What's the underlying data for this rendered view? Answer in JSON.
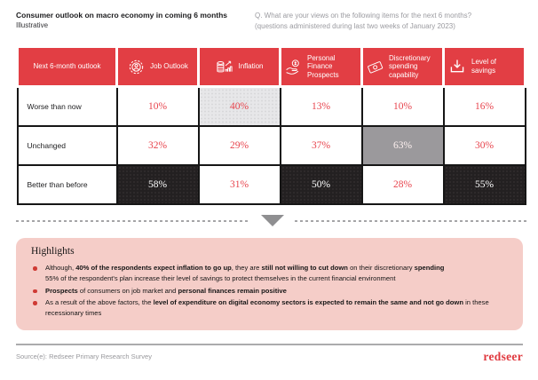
{
  "page": {
    "title": "Consumer outlook on macro economy in coming 6 months",
    "subtitle": "Illustrative",
    "question_line1": "Q. What are your views on the following items for the next 6 months?",
    "question_line2": "(questions administered during last two weeks of January 2023)"
  },
  "table": {
    "header": [
      {
        "label": "Next 6-month outlook",
        "icon": null
      },
      {
        "label": "Job Outlook",
        "icon": "gear-person"
      },
      {
        "label": "Inflation",
        "icon": "coins-growth"
      },
      {
        "label": "Personal Finance Prospects",
        "icon": "hand-coin"
      },
      {
        "label": "Discretionary spending capability",
        "icon": "banknote"
      },
      {
        "label": "Level of savings",
        "icon": "download-tray"
      }
    ],
    "rows": [
      {
        "label": "Worse than now",
        "cells": [
          {
            "value": "10%",
            "style": "default"
          },
          {
            "value": "40%",
            "style": "light"
          },
          {
            "value": "13%",
            "style": "default"
          },
          {
            "value": "10%",
            "style": "default"
          },
          {
            "value": "16%",
            "style": "default"
          }
        ]
      },
      {
        "label": "Unchanged",
        "cells": [
          {
            "value": "32%",
            "style": "default"
          },
          {
            "value": "29%",
            "style": "default"
          },
          {
            "value": "37%",
            "style": "default"
          },
          {
            "value": "63%",
            "style": "mid"
          },
          {
            "value": "30%",
            "style": "default"
          }
        ]
      },
      {
        "label": "Better than before",
        "cells": [
          {
            "value": "58%",
            "style": "dark"
          },
          {
            "value": "31%",
            "style": "default"
          },
          {
            "value": "50%",
            "style": "dark"
          },
          {
            "value": "28%",
            "style": "default"
          },
          {
            "value": "55%",
            "style": "dark"
          }
        ]
      }
    ]
  },
  "highlights": {
    "title": "Highlights",
    "bullets": [
      {
        "segments": [
          {
            "t": "Although, "
          },
          {
            "t": "40% of the respondents expect inflation to go up",
            "b": true
          },
          {
            "t": ", they are "
          },
          {
            "t": "still not willing to cut down",
            "b": true
          },
          {
            "t": " on their discretionary "
          },
          {
            "t": "spending",
            "b": true
          },
          {
            "t": "\n55% of the respondent's plan increase their level of savings to protect themselves in the current financial environment"
          }
        ]
      },
      {
        "segments": [
          {
            "t": "Prospects",
            "b": true
          },
          {
            "t": " of consumers on job market and "
          },
          {
            "t": "personal finances remain positive",
            "b": true
          }
        ]
      },
      {
        "segments": [
          {
            "t": "As a result of the above factors, the "
          },
          {
            "t": "level of expenditure on digital economy sectors is expected to remain the same and not go down",
            "b": true
          },
          {
            "t": " in these recessionary times"
          }
        ]
      }
    ]
  },
  "footer": {
    "source": "Source(e): Redseer Primary Research Survey",
    "logo": "redseer"
  },
  "colors": {
    "header_red": "#E23E44",
    "value_red": "#E8454E",
    "highlight_pink": "#F5CDC8",
    "cell_dark": "#232021",
    "cell_mid": "#9B999C",
    "cell_light": "#E7E7E9",
    "logo_red": "#E0393F"
  },
  "chart_data": {
    "type": "table",
    "title": "Consumer outlook on macro economy in coming 6 months",
    "columns": [
      "Job Outlook",
      "Inflation",
      "Personal Finance Prospects",
      "Discretionary spending capability",
      "Level of savings"
    ],
    "rows": [
      "Worse than now",
      "Unchanged",
      "Better than before"
    ],
    "values_pct": [
      [
        10,
        40,
        13,
        10,
        16
      ],
      [
        32,
        29,
        37,
        63,
        30
      ],
      [
        58,
        31,
        50,
        28,
        55
      ]
    ],
    "highlighted_cells": [
      {
        "row": "Worse than now",
        "column": "Inflation",
        "value": 40,
        "style": "light-gray"
      },
      {
        "row": "Unchanged",
        "column": "Discretionary spending capability",
        "value": 63,
        "style": "mid-gray"
      },
      {
        "row": "Better than before",
        "column": "Job Outlook",
        "value": 58,
        "style": "black"
      },
      {
        "row": "Better than before",
        "column": "Personal Finance Prospects",
        "value": 50,
        "style": "black"
      },
      {
        "row": "Better than before",
        "column": "Level of savings",
        "value": 55,
        "style": "black"
      }
    ]
  }
}
